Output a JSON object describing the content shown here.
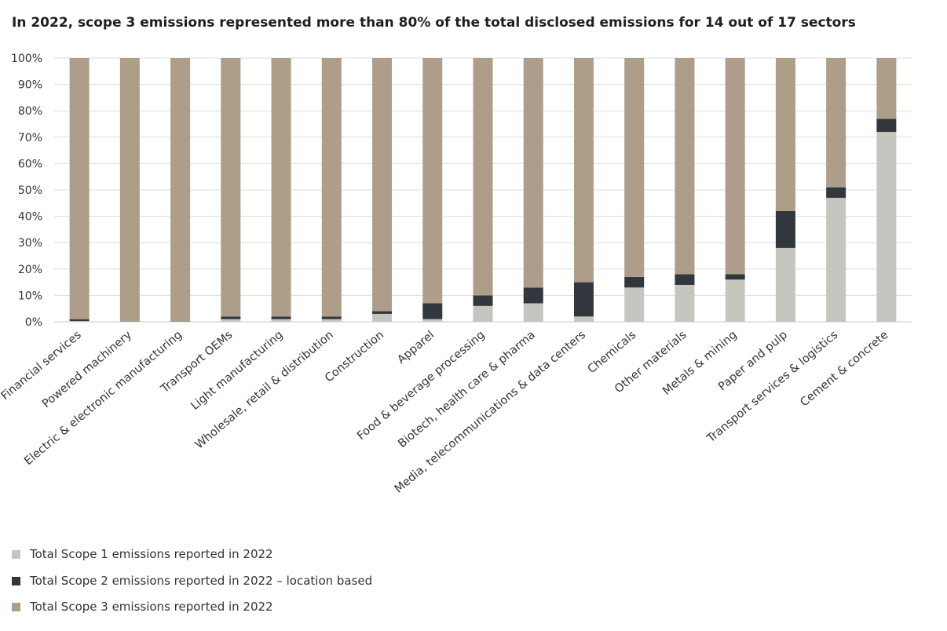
{
  "chart_data": {
    "type": "bar",
    "stacked": true,
    "title": "In 2022, scope 3 emissions represented more than 80% of the total disclosed emissions for 14 out of 17 sectors",
    "xlabel": "",
    "ylabel": "",
    "ylim": [
      0,
      100
    ],
    "yticks": [
      "0%",
      "10%",
      "20%",
      "30%",
      "40%",
      "50%",
      "60%",
      "70%",
      "80%",
      "90%",
      "100%"
    ],
    "grid": true,
    "legend_position": "bottom-left",
    "categories": [
      "Financial services",
      "Powered machinery",
      "Electric & electronic manufacturing",
      "Transport OEMs",
      "Light manufacturing",
      "Wholesale, retail & distribution",
      "Construction",
      "Apparel",
      "Food & beverage processing",
      "Biotech, health care & pharma",
      "Media, telecommunications & data centers",
      "Chemicals",
      "Other materials",
      "Metals & mining",
      "Paper and pulp",
      "Transport services & logistics",
      "Cement & concrete"
    ],
    "series": [
      {
        "name": "Total Scope 1 emissions reported in 2022",
        "color": "#c6c6c1",
        "values": [
          0.3,
          0.1,
          0.1,
          1,
          1,
          1,
          3,
          1,
          6,
          7,
          2,
          13,
          14,
          16,
          28,
          47,
          72
        ]
      },
      {
        "name": "Total Scope 2 emissions reported in 2022 – location based",
        "color": "#31373c",
        "values": [
          0.7,
          0.1,
          0.1,
          1,
          1,
          1,
          1,
          6,
          4,
          6,
          13,
          4,
          4,
          2,
          14,
          4,
          5
        ]
      },
      {
        "name": "Total Scope 3 emissions reported in 2022",
        "color": "#ad9d89",
        "values": [
          99,
          99.8,
          99.8,
          98,
          98,
          98,
          96,
          93,
          90,
          87,
          85,
          83,
          82,
          82,
          58,
          49,
          23
        ]
      }
    ]
  }
}
